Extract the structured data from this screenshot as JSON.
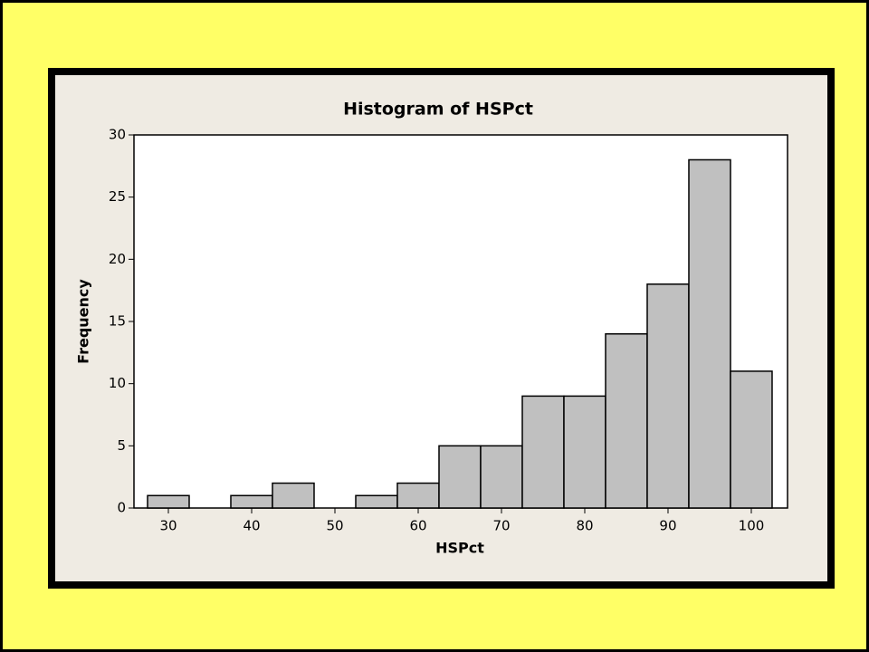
{
  "chart_data": {
    "type": "histogram",
    "title": "Histogram of HSPct",
    "x_label": "HSPct",
    "y_label": "Frequency",
    "bins": [
      27.5,
      32.5,
      37.5,
      42.5,
      47.5,
      52.5,
      57.5,
      62.5,
      67.5,
      72.5,
      77.5,
      82.5,
      87.5,
      92.5,
      97.5,
      102.5
    ],
    "values": [
      1,
      0,
      1,
      2,
      0,
      1,
      2,
      5,
      5,
      9,
      9,
      14,
      18,
      28,
      11
    ],
    "color": "#c0c0c0",
    "xlim": [
      25.87,
      104.35
    ],
    "xticks": [
      30,
      40,
      50,
      60,
      70,
      80,
      90,
      100
    ],
    "ylim": [
      0,
      30
    ],
    "yticks": [
      0,
      5,
      10,
      15,
      20,
      25,
      30
    ]
  }
}
